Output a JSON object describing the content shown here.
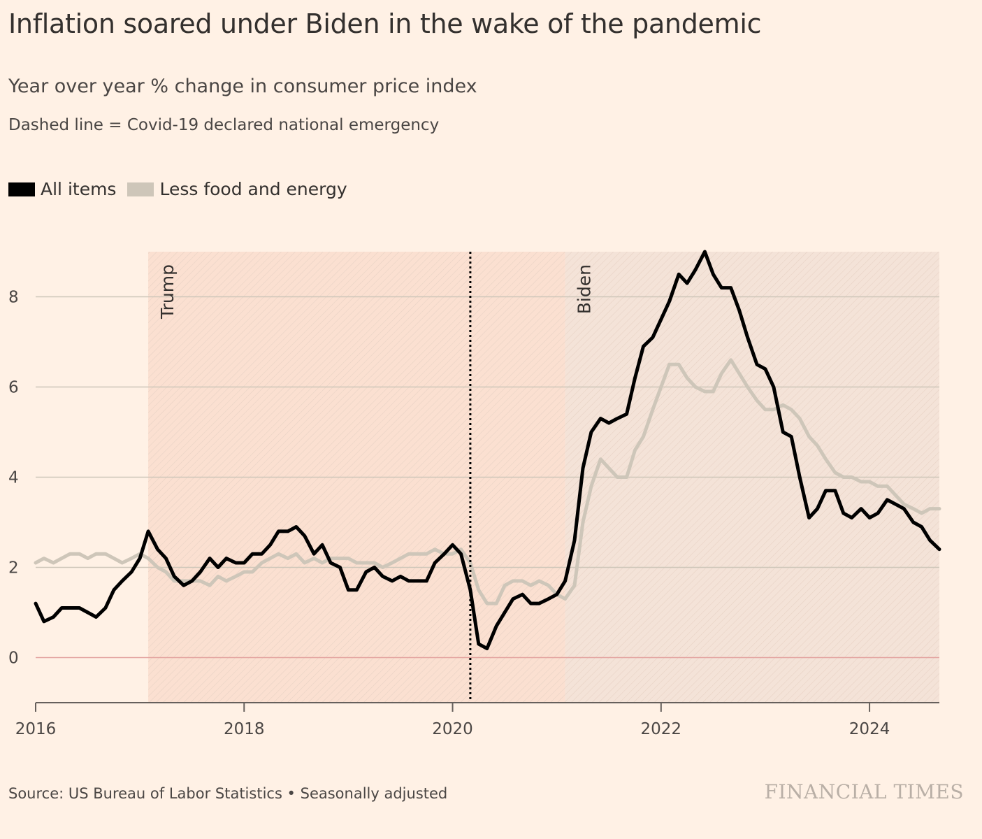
{
  "title": "Inflation soared under Biden in the wake of the pandemic",
  "subtitle": "Year over year % change in consumer price index",
  "note": "Dashed line = Covid-19 declared national emergency",
  "source": "Source: US Bureau of Labor Statistics • Seasonally adjusted",
  "brand": "FINANCIAL TIMES",
  "colors": {
    "background": "#FFF1E5",
    "all_items": "#000000",
    "core": "#CEC6B9",
    "trump_shade": "#FBE0D1",
    "biden_shade": "#F4E3D8",
    "zero_line": "#E3A4A0",
    "grid": "#CEC6B9"
  },
  "chart_data": {
    "type": "line",
    "title": "Inflation soared under Biden in the wake of the pandemic",
    "ylabel": "",
    "xlabel": "",
    "x_range": [
      2016.0,
      2024.67
    ],
    "ylim": [
      -1,
      9
    ],
    "y_ticks": [
      0,
      2,
      4,
      6,
      8
    ],
    "x_ticks": [
      2016,
      2018,
      2020,
      2022,
      2024
    ],
    "grid": true,
    "legend_position": "top-left",
    "periods": [
      {
        "name": "Trump",
        "start": 2017.08,
        "end": 2021.08
      },
      {
        "name": "Biden",
        "start": 2021.08,
        "end": 2024.67
      }
    ],
    "covid_emergency_date": 2020.17,
    "series": [
      {
        "name": "All items",
        "color": "#000000",
        "points": [
          [
            2016.0,
            1.2
          ],
          [
            2016.08,
            0.8
          ],
          [
            2016.17,
            0.9
          ],
          [
            2016.25,
            1.1
          ],
          [
            2016.33,
            1.1
          ],
          [
            2016.42,
            1.1
          ],
          [
            2016.5,
            1.0
          ],
          [
            2016.58,
            0.9
          ],
          [
            2016.67,
            1.1
          ],
          [
            2016.75,
            1.5
          ],
          [
            2016.83,
            1.7
          ],
          [
            2016.92,
            1.9
          ],
          [
            2017.0,
            2.2
          ],
          [
            2017.08,
            2.8
          ],
          [
            2017.17,
            2.4
          ],
          [
            2017.25,
            2.2
          ],
          [
            2017.33,
            1.8
          ],
          [
            2017.42,
            1.6
          ],
          [
            2017.5,
            1.7
          ],
          [
            2017.58,
            1.9
          ],
          [
            2017.67,
            2.2
          ],
          [
            2017.75,
            2.0
          ],
          [
            2017.83,
            2.2
          ],
          [
            2017.92,
            2.1
          ],
          [
            2018.0,
            2.1
          ],
          [
            2018.08,
            2.3
          ],
          [
            2018.17,
            2.3
          ],
          [
            2018.25,
            2.5
          ],
          [
            2018.33,
            2.8
          ],
          [
            2018.42,
            2.8
          ],
          [
            2018.5,
            2.9
          ],
          [
            2018.58,
            2.7
          ],
          [
            2018.67,
            2.3
          ],
          [
            2018.75,
            2.5
          ],
          [
            2018.83,
            2.1
          ],
          [
            2018.92,
            2.0
          ],
          [
            2019.0,
            1.5
          ],
          [
            2019.08,
            1.5
          ],
          [
            2019.17,
            1.9
          ],
          [
            2019.25,
            2.0
          ],
          [
            2019.33,
            1.8
          ],
          [
            2019.42,
            1.7
          ],
          [
            2019.5,
            1.8
          ],
          [
            2019.58,
            1.7
          ],
          [
            2019.67,
            1.7
          ],
          [
            2019.75,
            1.7
          ],
          [
            2019.83,
            2.1
          ],
          [
            2019.92,
            2.3
          ],
          [
            2020.0,
            2.5
          ],
          [
            2020.08,
            2.3
          ],
          [
            2020.17,
            1.5
          ],
          [
            2020.25,
            0.3
          ],
          [
            2020.33,
            0.2
          ],
          [
            2020.42,
            0.7
          ],
          [
            2020.5,
            1.0
          ],
          [
            2020.58,
            1.3
          ],
          [
            2020.67,
            1.4
          ],
          [
            2020.75,
            1.2
          ],
          [
            2020.83,
            1.2
          ],
          [
            2020.92,
            1.3
          ],
          [
            2021.0,
            1.4
          ],
          [
            2021.08,
            1.7
          ],
          [
            2021.17,
            2.6
          ],
          [
            2021.25,
            4.2
          ],
          [
            2021.33,
            5.0
          ],
          [
            2021.42,
            5.3
          ],
          [
            2021.5,
            5.2
          ],
          [
            2021.58,
            5.3
          ],
          [
            2021.67,
            5.4
          ],
          [
            2021.75,
            6.2
          ],
          [
            2021.83,
            6.9
          ],
          [
            2021.92,
            7.1
          ],
          [
            2022.0,
            7.5
          ],
          [
            2022.08,
            7.9
          ],
          [
            2022.17,
            8.5
          ],
          [
            2022.25,
            8.3
          ],
          [
            2022.33,
            8.6
          ],
          [
            2022.42,
            9.0
          ],
          [
            2022.5,
            8.5
          ],
          [
            2022.58,
            8.2
          ],
          [
            2022.67,
            8.2
          ],
          [
            2022.75,
            7.7
          ],
          [
            2022.83,
            7.1
          ],
          [
            2022.92,
            6.5
          ],
          [
            2023.0,
            6.4
          ],
          [
            2023.08,
            6.0
          ],
          [
            2023.17,
            5.0
          ],
          [
            2023.25,
            4.9
          ],
          [
            2023.33,
            4.0
          ],
          [
            2023.42,
            3.1
          ],
          [
            2023.5,
            3.3
          ],
          [
            2023.58,
            3.7
          ],
          [
            2023.67,
            3.7
          ],
          [
            2023.75,
            3.2
          ],
          [
            2023.83,
            3.1
          ],
          [
            2023.92,
            3.3
          ],
          [
            2024.0,
            3.1
          ],
          [
            2024.08,
            3.2
          ],
          [
            2024.17,
            3.5
          ],
          [
            2024.25,
            3.4
          ],
          [
            2024.33,
            3.3
          ],
          [
            2024.42,
            3.0
          ],
          [
            2024.5,
            2.9
          ],
          [
            2024.58,
            2.6
          ],
          [
            2024.67,
            2.4
          ]
        ]
      },
      {
        "name": "Less food and energy",
        "color": "#CEC6B9",
        "points": [
          [
            2016.0,
            2.1
          ],
          [
            2016.08,
            2.2
          ],
          [
            2016.17,
            2.1
          ],
          [
            2016.25,
            2.2
          ],
          [
            2016.33,
            2.3
          ],
          [
            2016.42,
            2.3
          ],
          [
            2016.5,
            2.2
          ],
          [
            2016.58,
            2.3
          ],
          [
            2016.67,
            2.3
          ],
          [
            2016.75,
            2.2
          ],
          [
            2016.83,
            2.1
          ],
          [
            2016.92,
            2.2
          ],
          [
            2017.0,
            2.3
          ],
          [
            2017.08,
            2.2
          ],
          [
            2017.17,
            2.0
          ],
          [
            2017.25,
            1.9
          ],
          [
            2017.33,
            1.7
          ],
          [
            2017.42,
            1.7
          ],
          [
            2017.5,
            1.7
          ],
          [
            2017.58,
            1.7
          ],
          [
            2017.67,
            1.6
          ],
          [
            2017.75,
            1.8
          ],
          [
            2017.83,
            1.7
          ],
          [
            2017.92,
            1.8
          ],
          [
            2018.0,
            1.9
          ],
          [
            2018.08,
            1.9
          ],
          [
            2018.17,
            2.1
          ],
          [
            2018.25,
            2.2
          ],
          [
            2018.33,
            2.3
          ],
          [
            2018.42,
            2.2
          ],
          [
            2018.5,
            2.3
          ],
          [
            2018.58,
            2.1
          ],
          [
            2018.67,
            2.2
          ],
          [
            2018.75,
            2.1
          ],
          [
            2018.83,
            2.2
          ],
          [
            2018.92,
            2.2
          ],
          [
            2019.0,
            2.2
          ],
          [
            2019.08,
            2.1
          ],
          [
            2019.17,
            2.1
          ],
          [
            2019.25,
            2.1
          ],
          [
            2019.33,
            2.0
          ],
          [
            2019.42,
            2.1
          ],
          [
            2019.5,
            2.2
          ],
          [
            2019.58,
            2.3
          ],
          [
            2019.67,
            2.3
          ],
          [
            2019.75,
            2.3
          ],
          [
            2019.83,
            2.4
          ],
          [
            2019.92,
            2.3
          ],
          [
            2020.0,
            2.3
          ],
          [
            2020.08,
            2.4
          ],
          [
            2020.17,
            2.1
          ],
          [
            2020.25,
            1.5
          ],
          [
            2020.33,
            1.2
          ],
          [
            2020.42,
            1.2
          ],
          [
            2020.5,
            1.6
          ],
          [
            2020.58,
            1.7
          ],
          [
            2020.67,
            1.7
          ],
          [
            2020.75,
            1.6
          ],
          [
            2020.83,
            1.7
          ],
          [
            2020.92,
            1.6
          ],
          [
            2021.0,
            1.4
          ],
          [
            2021.08,
            1.3
          ],
          [
            2021.17,
            1.6
          ],
          [
            2021.25,
            3.0
          ],
          [
            2021.33,
            3.8
          ],
          [
            2021.42,
            4.4
          ],
          [
            2021.5,
            4.2
          ],
          [
            2021.58,
            4.0
          ],
          [
            2021.67,
            4.0
          ],
          [
            2021.75,
            4.6
          ],
          [
            2021.83,
            4.9
          ],
          [
            2021.92,
            5.5
          ],
          [
            2022.0,
            6.0
          ],
          [
            2022.08,
            6.5
          ],
          [
            2022.17,
            6.5
          ],
          [
            2022.25,
            6.2
          ],
          [
            2022.33,
            6.0
          ],
          [
            2022.42,
            5.9
          ],
          [
            2022.5,
            5.9
          ],
          [
            2022.58,
            6.3
          ],
          [
            2022.67,
            6.6
          ],
          [
            2022.75,
            6.3
          ],
          [
            2022.83,
            6.0
          ],
          [
            2022.92,
            5.7
          ],
          [
            2023.0,
            5.5
          ],
          [
            2023.08,
            5.5
          ],
          [
            2023.17,
            5.6
          ],
          [
            2023.25,
            5.5
          ],
          [
            2023.33,
            5.3
          ],
          [
            2023.42,
            4.9
          ],
          [
            2023.5,
            4.7
          ],
          [
            2023.58,
            4.4
          ],
          [
            2023.67,
            4.1
          ],
          [
            2023.75,
            4.0
          ],
          [
            2023.83,
            4.0
          ],
          [
            2023.92,
            3.9
          ],
          [
            2024.0,
            3.9
          ],
          [
            2024.08,
            3.8
          ],
          [
            2024.17,
            3.8
          ],
          [
            2024.25,
            3.6
          ],
          [
            2024.33,
            3.4
          ],
          [
            2024.42,
            3.3
          ],
          [
            2024.5,
            3.2
          ],
          [
            2024.58,
            3.3
          ],
          [
            2024.67,
            3.3
          ]
        ]
      }
    ]
  }
}
